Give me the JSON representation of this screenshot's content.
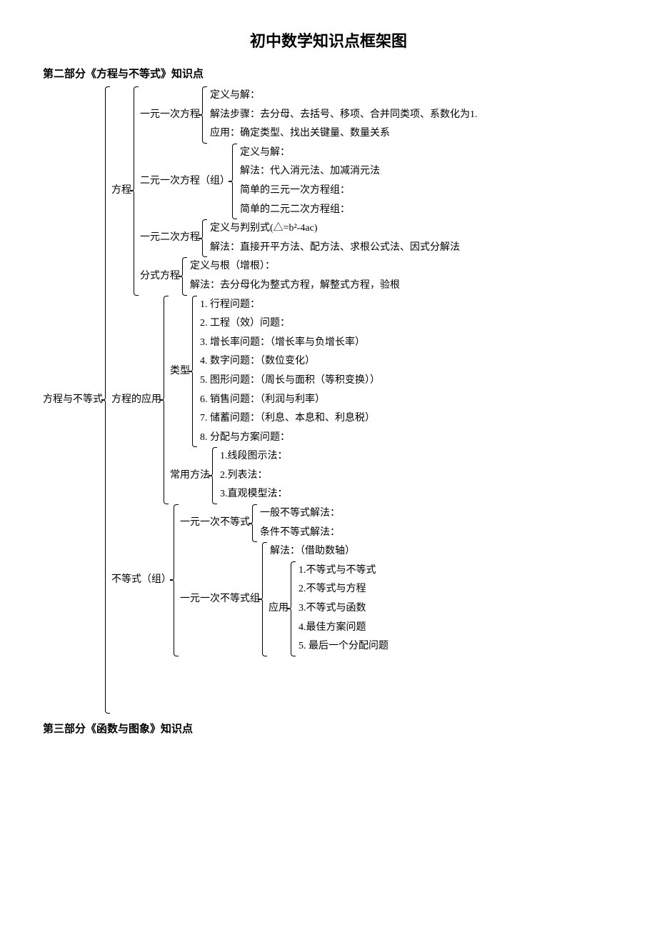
{
  "title": "初中数学知识点框架图",
  "section2_header": "第二部分《方程与不等式》知识点",
  "section3_header": "第三部分《函数与图象》知识点",
  "root": "方程与不等式",
  "b1": {
    "label": "方程",
    "c1": {
      "label": "一元一次方程",
      "l1": "定义与解：",
      "l2": "解法步骤：去分母、去括号、移项、合并同类项、系数化为1.",
      "l3": "应用：确定类型、找出关键量、数量关系"
    },
    "c2": {
      "label": "二元一次方程（组）",
      "l1": "定义与解：",
      "l2": "解法：代入消元法、加减消元法",
      "l3": "简单的三元一次方程组：",
      "l4": "简单的二元二次方程组："
    },
    "c3": {
      "label": "一元二次方程",
      "l1": "定义与判别式(△=b²-4ac)",
      "l2": "解法：直接开平方法、配方法、求根公式法、因式分解法"
    },
    "c4": {
      "label": "分式方程",
      "l1": "定义与根（增根）：",
      "l2": "解法：去分母化为整式方程，解整式方程，验根"
    }
  },
  "b2": {
    "label": "方程的应用",
    "c1": {
      "label": "类型",
      "l1": "1. 行程问题：",
      "l2": "2. 工程（效）问题：",
      "l3": "3. 增长率问题：（增长率与负增长率）",
      "l4": "4. 数字问题：（数位变化）",
      "l5": "5. 图形问题：（周长与面积（等积变换））",
      "l6": "6. 销售问题：（利润与利率）",
      "l7": "7. 储蓄问题：（利息、本息和、利息税）",
      "l8": "8. 分配与方案问题："
    },
    "c2": {
      "label": "常用方法",
      "l1": "1.线段图示法：",
      "l2": "2.列表法：",
      "l3": "3.直观模型法："
    }
  },
  "b3": {
    "label": "不等式（组）",
    "c1": {
      "label": "一元一次不等式",
      "l1": "一般不等式解法：",
      "l2": "条件不等式解法："
    },
    "c2": {
      "label": "一元一次不等式组",
      "l1": "解法：（借助数轴）",
      "app": {
        "label": "应用",
        "l1": "1.不等式与不等式",
        "l2": "2.不等式与方程",
        "l3": "3.不等式与函数",
        "l4": "4.最佳方案问题",
        "l5": "5. 最后一个分配问题"
      }
    }
  }
}
